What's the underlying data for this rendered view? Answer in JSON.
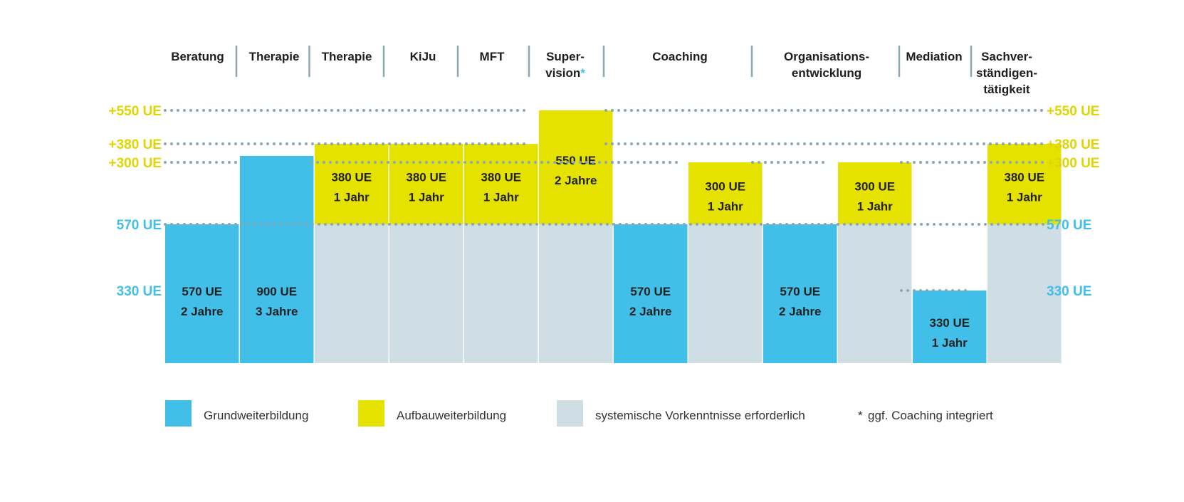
{
  "colors": {
    "grund": "#41bfe8",
    "aufbau": "#e6e200",
    "vorkenntnis": "#cfdde4",
    "divider": "#8aa7b6",
    "dots": "#8aa7b6",
    "yellow_text": "#e0d500",
    "blue_text": "#41bfe8",
    "asterisk": "#41bfe8"
  },
  "chart_data": {
    "type": "bar",
    "stacked": true,
    "categories": [
      {
        "lines": [
          "Beratung"
        ]
      },
      {
        "lines": [
          "Therapie"
        ]
      },
      {
        "lines": [
          "Therapie"
        ]
      },
      {
        "lines": [
          "KiJu"
        ]
      },
      {
        "lines": [
          "MFT"
        ]
      },
      {
        "lines": [
          "Super-",
          "vision"
        ],
        "asterisk": "*"
      },
      {
        "lines": [
          "Coaching"
        ]
      },
      {
        "lines": [
          "Organisations-",
          "entwicklung"
        ]
      },
      {
        "lines": [
          "Mediation"
        ]
      },
      {
        "lines": [
          "Sachver-",
          "ständigen-",
          "tätigkeit"
        ]
      }
    ],
    "bars": [
      {
        "segments": [
          {
            "type": "grund",
            "value": 570,
            "label": [
              "570 UE",
              "2 Jahre"
            ]
          }
        ]
      },
      {
        "segments": [
          {
            "type": "grund",
            "value": 900,
            "label": [
              "900 UE",
              "3 Jahre"
            ]
          }
        ]
      },
      {
        "segments": [
          {
            "type": "vorkenntnis",
            "value": 570
          },
          {
            "type": "aufbau",
            "value": 380,
            "label": [
              "380 UE",
              "1 Jahr"
            ]
          }
        ]
      },
      {
        "segments": [
          {
            "type": "vorkenntnis",
            "value": 570
          },
          {
            "type": "aufbau",
            "value": 380,
            "label": [
              "380 UE",
              "1 Jahr"
            ]
          }
        ]
      },
      {
        "segments": [
          {
            "type": "vorkenntnis",
            "value": 570
          },
          {
            "type": "aufbau",
            "value": 380,
            "label": [
              "380 UE",
              "1 Jahr"
            ]
          }
        ]
      },
      {
        "segments": [
          {
            "type": "vorkenntnis",
            "value": 570
          },
          {
            "type": "aufbau",
            "value": 550,
            "label": [
              "550 UE",
              "2 Jahre"
            ]
          }
        ]
      },
      {
        "segments": [
          {
            "type": "grund",
            "value": 570,
            "label": [
              "570 UE",
              "2 Jahre"
            ]
          }
        ]
      },
      {
        "segments": [
          {
            "type": "vorkenntnis",
            "value": 570
          },
          {
            "type": "aufbau",
            "value": 300,
            "label": [
              "300 UE",
              "1 Jahr"
            ]
          }
        ]
      },
      {
        "segments": [
          {
            "type": "grund",
            "value": 570,
            "label": [
              "570 UE",
              "2 Jahre"
            ]
          }
        ]
      },
      {
        "segments": [
          {
            "type": "vorkenntnis",
            "value": 570
          },
          {
            "type": "aufbau",
            "value": 300,
            "label": [
              "300 UE",
              "1 Jahr"
            ]
          }
        ]
      },
      {
        "segments": [
          {
            "type": "grund",
            "value": 330,
            "label": [
              "330 UE",
              "1 Jahr"
            ]
          }
        ]
      },
      {
        "segments": [
          {
            "type": "vorkenntnis",
            "value": 570
          },
          {
            "type": "aufbau",
            "value": 380,
            "label": [
              "380 UE",
              "1 Jahr"
            ]
          }
        ]
      }
    ],
    "reference_levels": [
      {
        "label": "+550 UE",
        "value": 1120,
        "color": "yellow"
      },
      {
        "label": "+380 UE",
        "value": 950,
        "color": "yellow"
      },
      {
        "label": "+300 UE",
        "value": 870,
        "color": "yellow"
      },
      {
        "label": "570 UE",
        "value": 570,
        "color": "blue"
      },
      {
        "label": "330 UE",
        "value": 330,
        "color": "blue"
      }
    ],
    "legend": [
      {
        "type": "grund",
        "label": "Grundweiterbildung"
      },
      {
        "type": "aufbau",
        "label": "Aufbauweiterbildung"
      },
      {
        "type": "vorkenntnis",
        "label": "systemische Vorkenntnisse erforderlich"
      },
      {
        "type": "asterisk",
        "symbol": "*",
        "label": "ggf. Coaching integriert"
      }
    ]
  }
}
